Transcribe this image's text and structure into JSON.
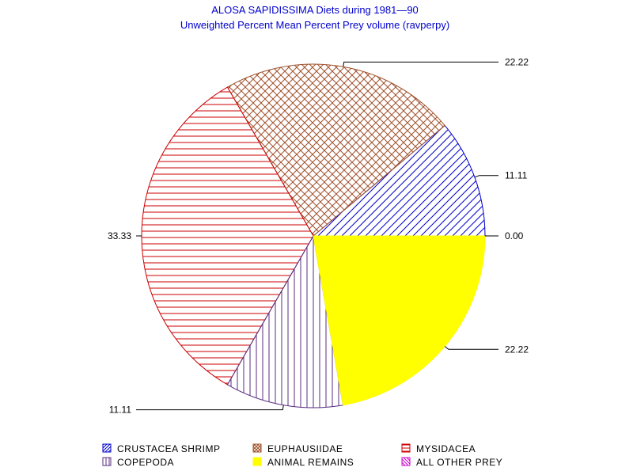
{
  "chart_data": {
    "type": "pie",
    "title": "ALOSA SAPIDISSIMA Diets during 1981—90",
    "subtitle": "Unweighted Percent Mean Percent Prey  volume (ravperpy)",
    "slices": [
      {
        "name": "ALL OTHER PREY",
        "value": 0.0,
        "label": "0.00",
        "color": "#cc00cc",
        "pattern": "diag-down"
      },
      {
        "name": "CRUSTACEA SHRIMP",
        "value": 11.11,
        "label": "11.11",
        "color": "#0000cc",
        "pattern": "diag-up"
      },
      {
        "name": "EUPHAUSIIDAE",
        "value": 22.22,
        "label": "22.22",
        "color": "#a0522d",
        "pattern": "cross"
      },
      {
        "name": "MYSIDACEA",
        "value": 33.33,
        "label": "33.33",
        "color": "#cc0000",
        "pattern": "horizontal"
      },
      {
        "name": "COPEPODA",
        "value": 11.11,
        "label": "11.11",
        "color": "#5a2d82",
        "pattern": "vertical"
      },
      {
        "name": "ANIMAL REMAINS",
        "value": 22.22,
        "label": "22.22",
        "color": "#ffff00",
        "pattern": "solid"
      }
    ],
    "legend": {
      "placement": "bottom",
      "items": [
        {
          "name": "CRUSTACEA SHRIMP",
          "color": "#0000cc",
          "pattern": "diag-up"
        },
        {
          "name": "EUPHAUSIIDAE",
          "color": "#a0522d",
          "pattern": "cross"
        },
        {
          "name": "MYSIDACEA",
          "color": "#cc0000",
          "pattern": "horizontal"
        },
        {
          "name": "COPEPODA",
          "color": "#5a2d82",
          "pattern": "vertical"
        },
        {
          "name": "ANIMAL REMAINS",
          "color": "#ffff00",
          "pattern": "solid"
        },
        {
          "name": "ALL OTHER PREY",
          "color": "#cc00cc",
          "pattern": "diag-down"
        }
      ]
    }
  }
}
